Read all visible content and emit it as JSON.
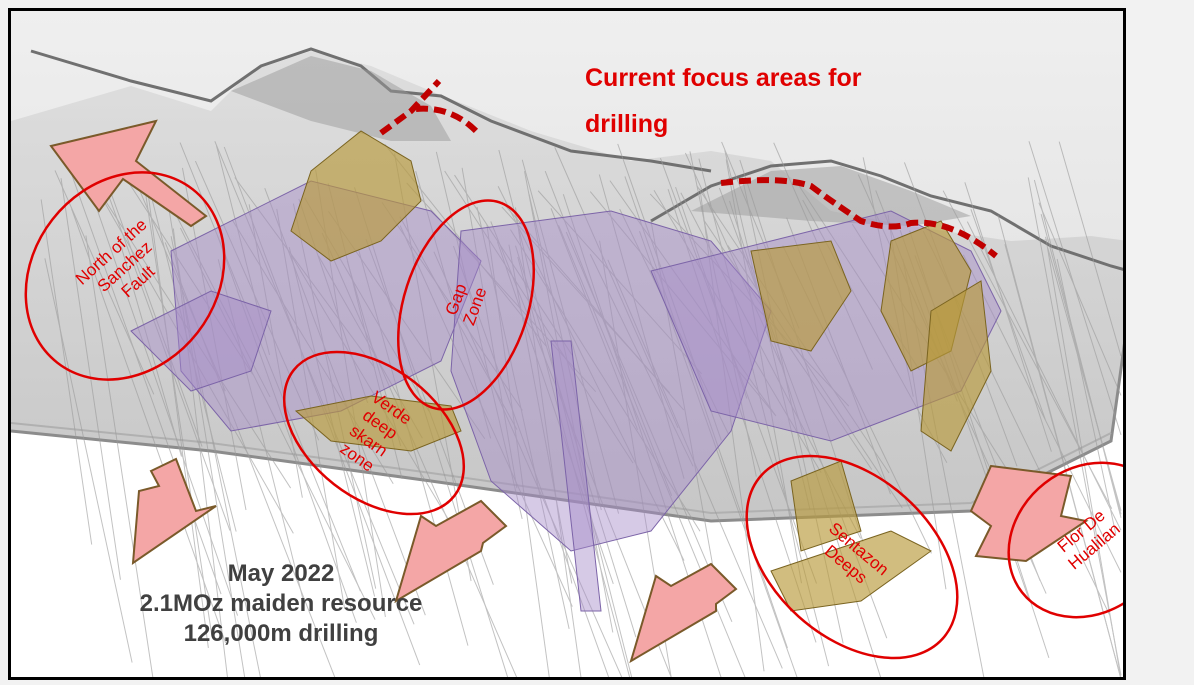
{
  "headline": {
    "line1": "Current focus areas for",
    "line2": "drilling"
  },
  "resource": {
    "line1": "May 2022",
    "line2": "2.1MOz maiden resource",
    "line3": "126,000m drilling"
  },
  "zones": {
    "north_sanchez": {
      "line1": "North of the",
      "line2": "Sanchez",
      "line3": "Fault"
    },
    "gap": {
      "line1": "Gap",
      "line2": "Zone"
    },
    "verde": {
      "line1": "Verde",
      "line2": "deep",
      "line3": "skarn",
      "line4": "zone"
    },
    "sentazon": {
      "line1": "Sentazon",
      "line2": "Deeps"
    },
    "flor": {
      "line1": "Flor De",
      "line2": "Hualilan"
    }
  },
  "colors": {
    "label_red": "#e00000",
    "arrow_fill": "#f4a6a6",
    "arrow_stroke": "#7a5a2a",
    "ore_gold": "#b89a3a",
    "ore_purple": "#a48ac8",
    "terrain": "#c8c8c8",
    "resource_text": "#404040"
  }
}
